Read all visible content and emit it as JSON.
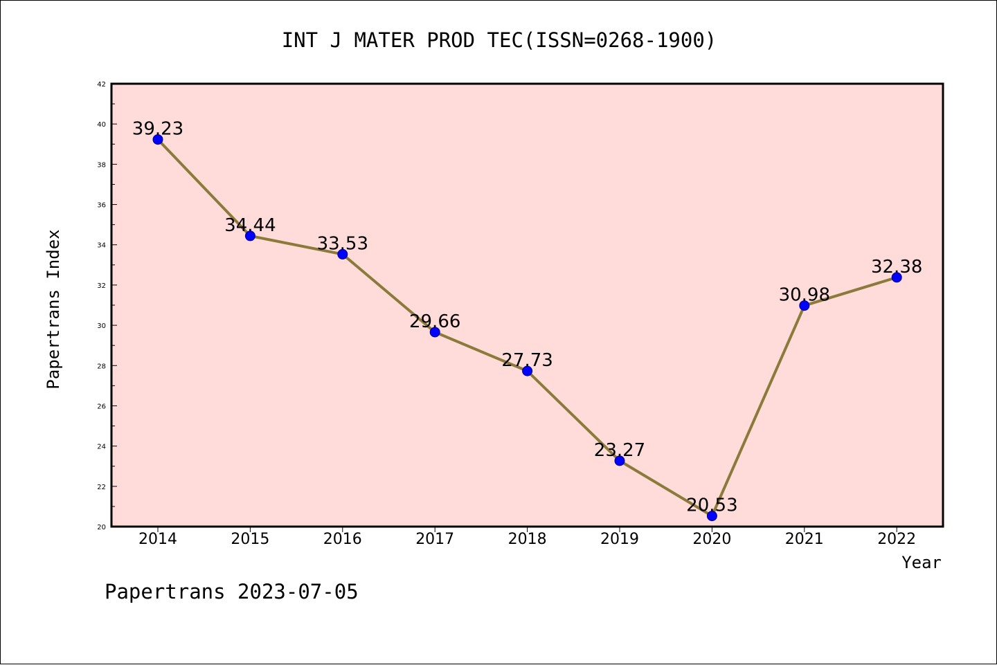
{
  "chart_data": {
    "type": "line",
    "title": "INT J MATER PROD TEC(ISSN=0268-1900)",
    "xlabel": "Year",
    "ylabel": "Papertrans Index",
    "categories": [
      "2014",
      "2015",
      "2016",
      "2017",
      "2018",
      "2019",
      "2020",
      "2021",
      "2022"
    ],
    "values": [
      39.23,
      34.44,
      33.53,
      29.66,
      27.73,
      23.27,
      20.53,
      30.98,
      32.38
    ],
    "value_labels": [
      "39.23",
      "34.44",
      "33.53",
      "29.66",
      "27.73",
      "23.27",
      "20.53",
      "30.98",
      "32.38"
    ],
    "ylim": [
      20,
      42
    ],
    "yticks": [
      "20",
      "22",
      "24",
      "26",
      "28",
      "30",
      "32",
      "34",
      "36",
      "38",
      "40",
      "42"
    ],
    "grid": false,
    "line_color": "#8B7A3A",
    "marker_color": "#0000FF",
    "plot_background": "#FFDCDA"
  },
  "footer": "Papertrans 2023-07-05"
}
